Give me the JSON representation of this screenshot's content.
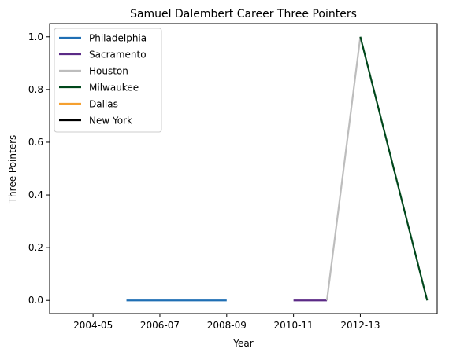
{
  "chart_data": {
    "type": "line",
    "title": "Samuel Dalembert Career Three Pointers",
    "xlabel": "Year",
    "ylabel": "Three Pointers",
    "x_ticks": [
      "2004-05",
      "2006-07",
      "2008-09",
      "2010-11",
      "2012-13"
    ],
    "x_tick_values": [
      2004,
      2006,
      2008,
      2010,
      2012
    ],
    "y_ticks": [
      "0.0",
      "0.2",
      "0.4",
      "0.6",
      "0.8",
      "1.0"
    ],
    "y_tick_values": [
      0,
      0.2,
      0.4,
      0.6,
      0.8,
      1.0
    ],
    "xlim": [
      2002.7,
      2014.3
    ],
    "ylim": [
      -0.05,
      1.05
    ],
    "legend_position": "top-left",
    "grid": false,
    "series": [
      {
        "name": "Philadelphia",
        "color": "#1f6fb4",
        "points": [
          [
            2005,
            0
          ],
          [
            2006,
            0
          ],
          [
            2007,
            0
          ],
          [
            2008,
            0
          ]
        ]
      },
      {
        "name": "Sacramento",
        "color": "#5b2a86",
        "points": [
          [
            2010,
            0
          ],
          [
            2011,
            0
          ]
        ]
      },
      {
        "name": "Houston",
        "color": "#bdbdbd",
        "points": [
          [
            2011,
            0
          ],
          [
            2012,
            1
          ]
        ]
      },
      {
        "name": "Milwaukee",
        "color": "#00471b",
        "points": [
          [
            2012,
            1
          ],
          [
            2014,
            0
          ]
        ]
      },
      {
        "name": "Dallas",
        "color": "#f5a030",
        "points": []
      },
      {
        "name": "New York",
        "color": "#000000",
        "points": []
      }
    ]
  }
}
